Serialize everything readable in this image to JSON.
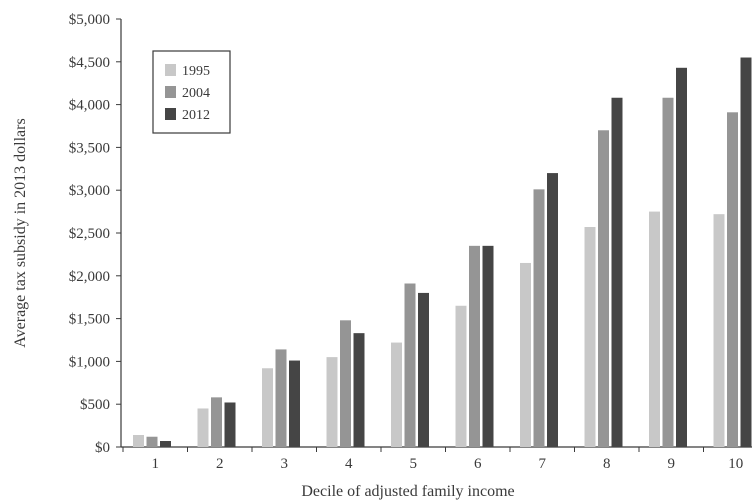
{
  "chart_data": {
    "type": "bar",
    "xlabel": "Decile of adjusted family income",
    "ylabel": "Average tax subsidy in 2013 dollars",
    "categories": [
      "1",
      "2",
      "3",
      "4",
      "5",
      "6",
      "7",
      "8",
      "9",
      "10"
    ],
    "ylim": [
      0,
      5000
    ],
    "yticks": [
      0,
      500,
      1000,
      1500,
      2000,
      2500,
      3000,
      3500,
      4000,
      4500,
      5000
    ],
    "ytick_labels": [
      "$0",
      "$500",
      "$1,000",
      "$1,500",
      "$2,000",
      "$2,500",
      "$3,000",
      "$3,500",
      "$4,000",
      "$4,500",
      "$5,000"
    ],
    "grid": false,
    "legend_position": "top-left",
    "series": [
      {
        "name": "1995",
        "color": "#c8c8c8",
        "values": [
          140,
          450,
          920,
          1050,
          1220,
          1650,
          2150,
          2570,
          2750,
          2720
        ]
      },
      {
        "name": "2004",
        "color": "#959595",
        "values": [
          120,
          580,
          1140,
          1480,
          1910,
          2350,
          3010,
          3700,
          4080,
          3910
        ]
      },
      {
        "name": "2012",
        "color": "#454545",
        "values": [
          70,
          520,
          1010,
          1330,
          1800,
          2350,
          3200,
          4080,
          4430,
          4550
        ]
      }
    ]
  }
}
